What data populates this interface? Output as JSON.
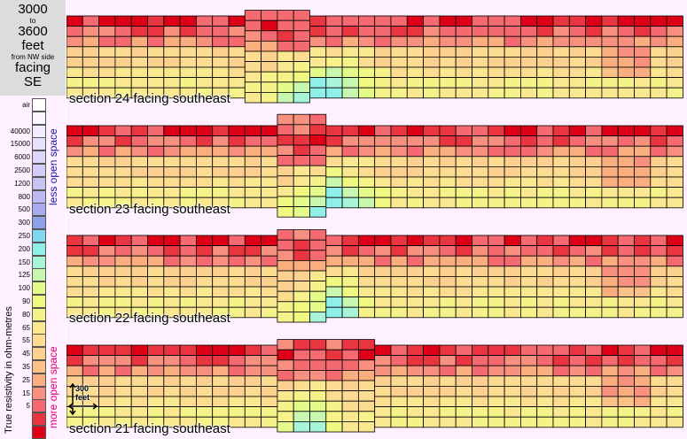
{
  "header": {
    "range_start": "3000",
    "range_to": "to",
    "range_end": "3600",
    "unit": "feet",
    "from": "from NW side",
    "facing": "facing",
    "direction": "SE"
  },
  "legend": {
    "axis_label": "True resistivity in ohm-metres",
    "less_open": "less open space",
    "more_open": "more open space",
    "entries": [
      {
        "label": "air",
        "color": "#ffffff"
      },
      {
        "label": "",
        "color": "#fbf6ff"
      },
      {
        "label": "40000",
        "color": "#f1ecfd"
      },
      {
        "label": "15000",
        "color": "#e6e1fb"
      },
      {
        "label": "6000",
        "color": "#dcd6f8"
      },
      {
        "label": "2500",
        "color": "#d2ccf6"
      },
      {
        "label": "1200",
        "color": "#c8c2f4"
      },
      {
        "label": "800",
        "color": "#bdb8f1"
      },
      {
        "label": "500",
        "color": "#aaaaee"
      },
      {
        "label": "300",
        "color": "#8fa0ea"
      },
      {
        "label": "250",
        "color": "#7fd8ee"
      },
      {
        "label": "200",
        "color": "#8ff0ea"
      },
      {
        "label": "150",
        "color": "#a8f4d8"
      },
      {
        "label": "125",
        "color": "#c8f7b0"
      },
      {
        "label": "100",
        "color": "#e4fa8a"
      },
      {
        "label": "90",
        "color": "#f0f882"
      },
      {
        "label": "80",
        "color": "#f6f28a"
      },
      {
        "label": "65",
        "color": "#fae890"
      },
      {
        "label": "55",
        "color": "#fcdc90"
      },
      {
        "label": "45",
        "color": "#fcd08e"
      },
      {
        "label": "35",
        "color": "#fbc287"
      },
      {
        "label": "25",
        "color": "#faae80"
      },
      {
        "label": "15",
        "color": "#f89080"
      },
      {
        "label": "5",
        "color": "#f46a70"
      },
      {
        "label": "",
        "color": "#e8353f"
      },
      {
        "label": "",
        "color": "#dd0016"
      }
    ]
  },
  "scale_bar": {
    "label": "300 feet"
  },
  "sections": [
    {
      "label": "section 24 facing southeast",
      "seed": 24,
      "bump": [
        [
          11,
          14,
          "a"
        ]
      ],
      "low": [
        12,
        19
      ],
      "lowdepth": 8
    },
    {
      "label": "section 23 facing southeast",
      "seed": 23,
      "bump": [
        [
          13,
          15,
          "b"
        ]
      ],
      "low": [
        13,
        19
      ],
      "lowdepth": 8
    },
    {
      "label": "section 22 facing southeast",
      "seed": 22,
      "bump": [
        [
          13,
          15,
          "c"
        ]
      ],
      "low": [
        14,
        18
      ],
      "lowdepth": 7
    },
    {
      "label": "section 21 facing southeast",
      "seed": 21,
      "bump": [
        [
          13,
          18,
          "d"
        ]
      ],
      "low": [
        13,
        16
      ],
      "lowdepth": 7
    }
  ],
  "colors": {
    "grid": "#000000",
    "panel_bg": "#fff0ff"
  }
}
